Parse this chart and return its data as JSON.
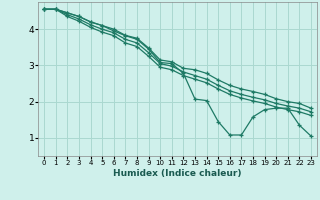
{
  "xlabel": "Humidex (Indice chaleur)",
  "background_color": "#cff0eb",
  "grid_color": "#aad8d0",
  "line_color": "#1e7a65",
  "xmin": -0.5,
  "xmax": 23.5,
  "ymin": 0.5,
  "ymax": 4.75,
  "x_data": [
    0,
    1,
    2,
    3,
    4,
    5,
    6,
    7,
    8,
    9,
    10,
    11,
    12,
    13,
    14,
    15,
    16,
    17,
    18,
    19,
    20,
    21,
    22,
    23
  ],
  "line_zigzag": [
    4.55,
    4.55,
    4.45,
    4.35,
    4.2,
    4.1,
    3.95,
    3.82,
    3.72,
    3.45,
    3.08,
    3.05,
    2.78,
    2.07,
    2.03,
    1.45,
    1.08,
    1.08,
    1.58,
    1.78,
    1.82,
    1.82,
    1.35,
    1.05
  ],
  "line_top": [
    4.55,
    4.55,
    4.45,
    4.35,
    4.2,
    4.1,
    4.0,
    3.83,
    3.75,
    3.48,
    3.15,
    3.1,
    2.92,
    2.88,
    2.78,
    2.6,
    2.45,
    2.35,
    2.28,
    2.2,
    2.08,
    2.0,
    1.95,
    1.82
  ],
  "line_mid": [
    4.55,
    4.55,
    4.4,
    4.28,
    4.12,
    4.0,
    3.9,
    3.72,
    3.62,
    3.35,
    3.05,
    2.98,
    2.82,
    2.72,
    2.62,
    2.45,
    2.3,
    2.2,
    2.12,
    2.05,
    1.95,
    1.88,
    1.82,
    1.72
  ],
  "line_bot": [
    4.55,
    4.55,
    4.35,
    4.22,
    4.05,
    3.92,
    3.82,
    3.62,
    3.52,
    3.25,
    2.95,
    2.88,
    2.72,
    2.62,
    2.52,
    2.35,
    2.2,
    2.1,
    2.02,
    1.95,
    1.85,
    1.78,
    1.72,
    1.62
  ],
  "yticks": [
    1,
    2,
    3,
    4
  ],
  "xticks": [
    0,
    1,
    2,
    3,
    4,
    5,
    6,
    7,
    8,
    9,
    10,
    11,
    12,
    13,
    14,
    15,
    16,
    17,
    18,
    19,
    20,
    21,
    22,
    23
  ]
}
